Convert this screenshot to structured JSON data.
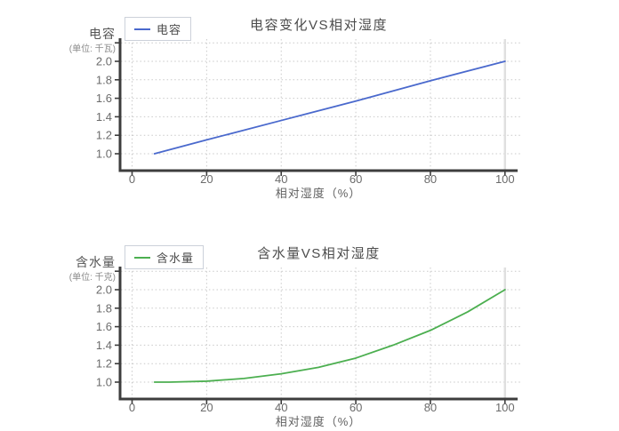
{
  "chart_data": [
    {
      "type": "line",
      "title": "电容变化VS相对湿度",
      "xlabel": "相对湿度（%）",
      "ylabel": "电容",
      "ylabel_unit": "(单位: 千瓦)",
      "x_ticks": [
        0,
        20,
        40,
        60,
        80,
        100
      ],
      "y_tick_labels": [
        "1.0",
        "1.2",
        "1.4",
        "1.6",
        "1.8",
        "2.0"
      ],
      "y_grid_values": [
        1.0,
        1.2,
        1.4,
        1.6,
        1.8,
        2.0,
        2.2
      ],
      "xlim": [
        -3.2,
        103.5
      ],
      "ylim": [
        0.82,
        2.24
      ],
      "grid": "dotted",
      "legend_position": "top-left",
      "series": [
        {
          "name": "电容",
          "color": "#4a69cd",
          "x": [
            6,
            20,
            40,
            60,
            80,
            100
          ],
          "y": [
            1.0,
            1.15,
            1.36,
            1.57,
            1.79,
            2.0
          ]
        }
      ]
    },
    {
      "type": "line",
      "title": "含水量VS相对湿度",
      "xlabel": "相对湿度（%）",
      "ylabel": "含水量",
      "ylabel_unit": "(单位: 千克)",
      "x_ticks": [
        0,
        20,
        40,
        60,
        80,
        100
      ],
      "y_tick_labels": [
        "1.0",
        "1.2",
        "1.4",
        "1.6",
        "1.8",
        "2.0"
      ],
      "y_grid_values": [
        1.0,
        1.2,
        1.4,
        1.6,
        1.8,
        2.0,
        2.2
      ],
      "xlim": [
        -3.2,
        103.5
      ],
      "ylim": [
        0.82,
        2.24
      ],
      "grid": "dotted",
      "legend_position": "top-left",
      "series": [
        {
          "name": "含水量",
          "color": "#4caf50",
          "x": [
            6,
            10,
            20,
            30,
            40,
            50,
            60,
            70,
            80,
            90,
            100
          ],
          "y": [
            1.0,
            1.0,
            1.01,
            1.04,
            1.09,
            1.16,
            1.26,
            1.4,
            1.56,
            1.76,
            2.0
          ]
        }
      ]
    }
  ],
  "colors": {
    "axis": "#3d3d3d",
    "grid": "#c9c9c9",
    "grid_solid_light": "#e0e0e0",
    "tick_label": "#6b6b6b",
    "title_text": "#4c4c4c"
  }
}
